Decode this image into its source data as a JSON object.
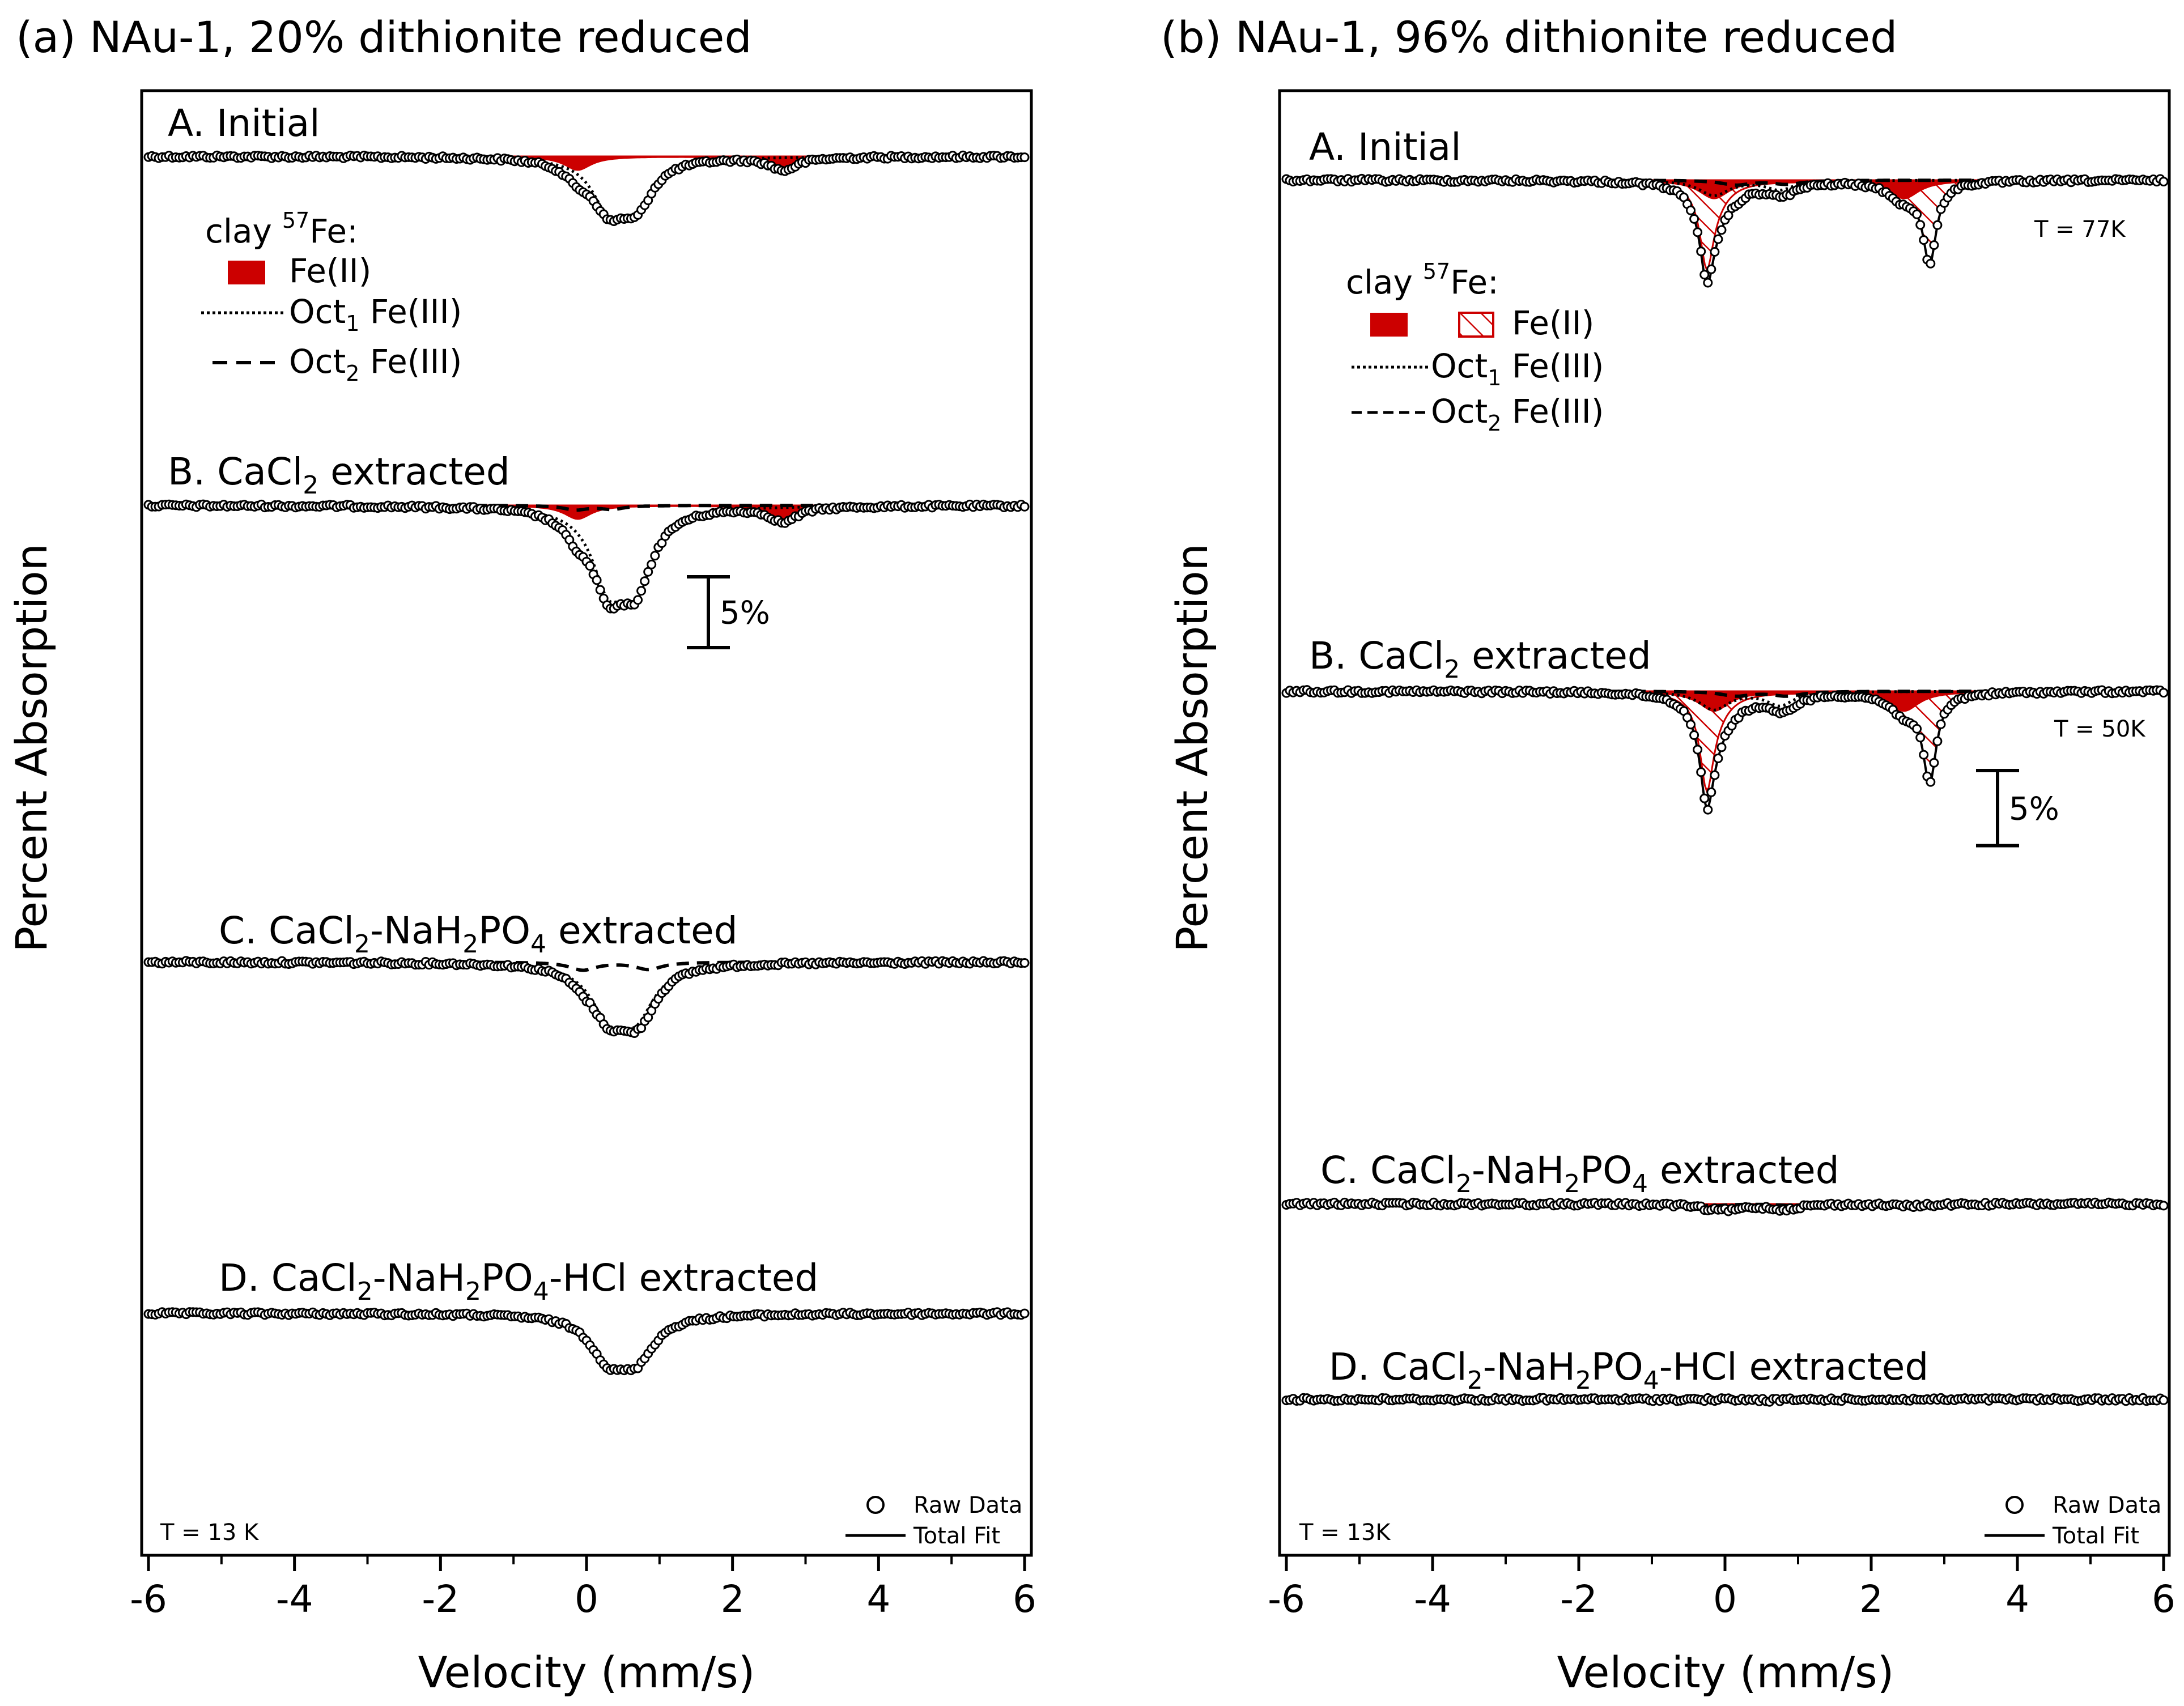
{
  "chart_data": [
    {
      "type": "line",
      "panel_id": "a",
      "title": "(a) NAu-1, 20% dithionite reduced",
      "xlabel": "Velocity (mm/s)",
      "ylabel": "Percent Absorption",
      "xlim": [
        -6,
        6
      ],
      "x_ticks": [
        -6,
        -4,
        -2,
        0,
        2,
        4,
        6
      ],
      "temperature": "T = 13 K",
      "scale_bar": {
        "label": "5%",
        "percent": 5
      },
      "legend_components": {
        "header": "clay",
        "isotope_sup": "57",
        "isotope_tail": "Fe:",
        "fe2": "Fe(II)",
        "oct1": "Oct",
        "oct1_sub": "1",
        "oct1_tail": " Fe(III)",
        "oct2": "Oct",
        "oct2_sub": "2",
        "oct2_tail": " Fe(III)"
      },
      "legend_data": {
        "raw": "Raw Data",
        "fit": "Total Fit"
      },
      "spectra": [
        {
          "label": "A. Initial",
          "label_parts": [
            [
              "A. Initial",
              ""
            ]
          ],
          "oct1": [
            {
              "center": 0.3,
              "depth": 3.2,
              "width": 0.55
            },
            {
              "center": 0.68,
              "depth": 3.1,
              "width": 0.55
            }
          ],
          "oct2": [],
          "fe2": [
            {
              "center": -0.12,
              "depth": 0.95,
              "width": 0.45
            },
            {
              "center": 2.7,
              "depth": 0.9,
              "width": 0.45
            }
          ],
          "fe2_sites": [],
          "fe2_envelope": false
        },
        {
          "label": "B. CaCl2 extracted",
          "label_parts": [
            [
              "B. CaCl",
              ""
            ],
            [
              "2",
              "sub"
            ],
            [
              " extracted",
              ""
            ]
          ],
          "oct1": [
            {
              "center": 0.3,
              "depth": 5.0,
              "width": 0.55
            },
            {
              "center": 0.68,
              "depth": 4.9,
              "width": 0.55
            }
          ],
          "oct2": [
            {
              "center": -0.15,
              "depth": 0.3,
              "width": 0.4
            },
            {
              "center": 0.35,
              "depth": 0.25,
              "width": 0.4
            }
          ],
          "fe2": [
            {
              "center": -0.12,
              "depth": 0.95,
              "width": 0.45
            },
            {
              "center": 2.7,
              "depth": 1.05,
              "width": 0.45
            }
          ],
          "fe2_sites": [],
          "fe2_envelope": false
        },
        {
          "label": "C. CaCl2-NaH2PO4 extracted",
          "label_parts": [
            [
              "C. CaCl",
              ""
            ],
            [
              "2",
              "sub"
            ],
            [
              "-NaH",
              ""
            ],
            [
              "2",
              "sub"
            ],
            [
              "PO",
              ""
            ],
            [
              "4",
              "sub"
            ],
            [
              " extracted",
              ""
            ]
          ],
          "oct1": [
            {
              "center": 0.3,
              "depth": 3.2,
              "width": 0.6
            },
            {
              "center": 0.68,
              "depth": 3.3,
              "width": 0.6
            }
          ],
          "oct2": [
            {
              "center": -0.05,
              "depth": 0.55,
              "width": 0.45
            },
            {
              "center": 0.85,
              "depth": 0.5,
              "width": 0.45
            }
          ],
          "fe2": [],
          "fe2_sites": [],
          "fe2_envelope": false
        },
        {
          "label": "D. CaCl2-NaH2PO4-HCl extracted",
          "label_parts": [
            [
              "D. CaCl",
              ""
            ],
            [
              "2",
              "sub"
            ],
            [
              "-NaH",
              ""
            ],
            [
              "2",
              "sub"
            ],
            [
              "PO",
              ""
            ],
            [
              "4",
              "sub"
            ],
            [
              "-HCl extracted",
              ""
            ]
          ],
          "oct1": [
            {
              "center": 0.3,
              "depth": 2.8,
              "width": 0.6
            },
            {
              "center": 0.68,
              "depth": 2.8,
              "width": 0.6
            }
          ],
          "oct2": [],
          "fe2": [],
          "fe2_sites": [],
          "fe2_envelope": false
        }
      ]
    },
    {
      "type": "line",
      "panel_id": "b",
      "title": "(b) NAu-1, 96% dithionite reduced",
      "xlabel": "Velocity (mm/s)",
      "ylabel": "Percent Absorption",
      "xlim": [
        -6,
        6
      ],
      "x_ticks": [
        -6,
        -4,
        -2,
        0,
        2,
        4,
        6
      ],
      "temperature": "T = 13K",
      "scale_bar": {
        "label": "5%",
        "percent": 5
      },
      "legend_components": {
        "header": "clay",
        "isotope_sup": "57",
        "isotope_tail": "Fe:",
        "fe2": "Fe(II)",
        "oct1": "Oct",
        "oct1_sub": "1",
        "oct1_tail": " Fe(III)",
        "oct2": "Oct",
        "oct2_sub": "2",
        "oct2_tail": " Fe(III)"
      },
      "legend_data": {
        "raw": "Raw Data",
        "fit": "Total Fit"
      },
      "spectra": [
        {
          "label": "A. Initial",
          "label_parts": [
            [
              "A. Initial",
              ""
            ]
          ],
          "temp": "T = 77K",
          "oct1": [
            {
              "center": -0.15,
              "depth": 1.0,
              "width": 0.5
            },
            {
              "center": 0.75,
              "depth": 0.6,
              "width": 0.45
            }
          ],
          "oct2": [
            {
              "center": 0.15,
              "depth": 0.3,
              "width": 0.5
            },
            {
              "center": 0.85,
              "depth": 0.25,
              "width": 0.5
            }
          ],
          "fe2": [
            {
              "center": -0.15,
              "depth": 1.2,
              "width": 0.5
            },
            {
              "center": 2.45,
              "depth": 1.2,
              "width": 0.5
            }
          ],
          "fe2_sites": [
            {
              "center": -0.25,
              "depth": 4.9,
              "width": 0.22
            },
            {
              "center": 2.8,
              "depth": 5.2,
              "width": 0.22
            }
          ],
          "fe2_envelope": true
        },
        {
          "label": "B. CaCl2 extracted",
          "label_parts": [
            [
              "B. CaCl",
              ""
            ],
            [
              "2",
              "sub"
            ],
            [
              " extracted",
              ""
            ]
          ],
          "temp": "T = 50K",
          "oct1": [
            {
              "center": -0.15,
              "depth": 1.2,
              "width": 0.5
            },
            {
              "center": 0.75,
              "depth": 0.9,
              "width": 0.45
            }
          ],
          "oct2": [
            {
              "center": 0.15,
              "depth": 0.3,
              "width": 0.5
            },
            {
              "center": 0.85,
              "depth": 0.3,
              "width": 0.5
            }
          ],
          "fe2": [
            {
              "center": -0.15,
              "depth": 1.3,
              "width": 0.5
            },
            {
              "center": 2.45,
              "depth": 1.3,
              "width": 0.5
            }
          ],
          "fe2_sites": [
            {
              "center": -0.25,
              "depth": 5.5,
              "width": 0.22
            },
            {
              "center": 2.8,
              "depth": 5.7,
              "width": 0.22
            }
          ],
          "fe2_envelope": true
        },
        {
          "label": "C. CaCl2-NaH2PO4 extracted",
          "label_parts": [
            [
              "C. CaCl",
              ""
            ],
            [
              "2",
              "sub"
            ],
            [
              "-NaH",
              ""
            ],
            [
              "2",
              "sub"
            ],
            [
              "PO",
              ""
            ],
            [
              "4",
              "sub"
            ],
            [
              " extracted",
              ""
            ]
          ],
          "oct1": [
            {
              "center": 0.1,
              "depth": 0.25,
              "width": 0.45
            },
            {
              "center": 0.75,
              "depth": 0.25,
              "width": 0.45
            }
          ],
          "oct2": [
            {
              "center": -0.2,
              "depth": 0.15,
              "width": 0.4
            },
            {
              "center": 0.9,
              "depth": 0.1,
              "width": 0.4
            }
          ],
          "fe2": [
            {
              "center": -0.15,
              "depth": 0.12,
              "width": 0.6
            },
            {
              "center": 2.5,
              "depth": 0.12,
              "width": 0.6
            }
          ],
          "fe2_sites": [],
          "fe2_envelope": false
        },
        {
          "label": "D. CaCl2-NaH2PO4-HCl extracted",
          "label_parts": [
            [
              "D. CaCl",
              ""
            ],
            [
              "2",
              "sub"
            ],
            [
              "-NaH",
              ""
            ],
            [
              "2",
              "sub"
            ],
            [
              "PO",
              ""
            ],
            [
              "4",
              "sub"
            ],
            [
              "-HCl extracted",
              ""
            ]
          ],
          "oct1": [
            {
              "center": 0.6,
              "depth": 0.05,
              "width": 0.6
            }
          ],
          "oct2": [],
          "fe2": [],
          "fe2_sites": [],
          "fe2_envelope": false
        }
      ]
    }
  ],
  "colors": {
    "fe2_fill": "#cc0000",
    "line": "#000000",
    "background": "#ffffff"
  }
}
